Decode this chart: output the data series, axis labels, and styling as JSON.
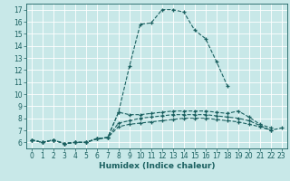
{
  "title": "",
  "xlabel": "Humidex (Indice chaleur)",
  "ylabel": "",
  "bg_color": "#c8e8e8",
  "line_color": "#1a6060",
  "grid_color": "#ffffff",
  "xlim": [
    -0.5,
    23.5
  ],
  "ylim": [
    5.5,
    17.5
  ],
  "xticks": [
    0,
    1,
    2,
    3,
    4,
    5,
    6,
    7,
    8,
    9,
    10,
    11,
    12,
    13,
    14,
    15,
    16,
    17,
    18,
    19,
    20,
    21,
    22,
    23
  ],
  "yticks": [
    6,
    7,
    8,
    9,
    10,
    11,
    12,
    13,
    14,
    15,
    16,
    17
  ],
  "line1_x": [
    0,
    1,
    2,
    3,
    4,
    5,
    6,
    7,
    8,
    9,
    10,
    11,
    12,
    13,
    14,
    15,
    16,
    17,
    18
  ],
  "line1_y": [
    6.2,
    6.0,
    6.2,
    5.9,
    6.0,
    6.0,
    6.3,
    6.4,
    8.5,
    12.3,
    15.8,
    15.9,
    17.0,
    17.0,
    16.8,
    15.3,
    14.6,
    12.7,
    10.7
  ],
  "line2_x": [
    0,
    1,
    2,
    3,
    4,
    5,
    6,
    7,
    8,
    9,
    10,
    11,
    12,
    13,
    14,
    15,
    16,
    17,
    18,
    19,
    20,
    21,
    22
  ],
  "line2_y": [
    6.2,
    6.0,
    6.2,
    5.9,
    6.0,
    6.0,
    6.3,
    6.4,
    8.5,
    8.3,
    8.3,
    8.4,
    8.5,
    8.6,
    8.6,
    8.6,
    8.6,
    8.5,
    8.4,
    8.6,
    8.1,
    7.5,
    7.2
  ],
  "line3_x": [
    0,
    1,
    2,
    3,
    4,
    5,
    6,
    7,
    8,
    9,
    10,
    11,
    12,
    13,
    14,
    15,
    16,
    17,
    18,
    19,
    20,
    21,
    22
  ],
  "line3_y": [
    6.2,
    6.0,
    6.2,
    5.9,
    6.0,
    6.0,
    6.3,
    6.4,
    7.6,
    7.8,
    8.0,
    8.1,
    8.2,
    8.3,
    8.3,
    8.3,
    8.3,
    8.2,
    8.1,
    8.0,
    7.8,
    7.4,
    7.0
  ],
  "line4_x": [
    0,
    1,
    2,
    3,
    4,
    5,
    6,
    7,
    8,
    9,
    10,
    11,
    12,
    13,
    14,
    15,
    16,
    17,
    18,
    19,
    20,
    21,
    22,
    23
  ],
  "line4_y": [
    6.2,
    6.0,
    6.2,
    5.9,
    6.0,
    6.0,
    6.3,
    6.4,
    7.3,
    7.5,
    7.6,
    7.7,
    7.8,
    7.9,
    8.0,
    8.0,
    8.0,
    7.9,
    7.8,
    7.7,
    7.5,
    7.3,
    7.0,
    7.2
  ],
  "tick_fontsize": 5.5,
  "xlabel_fontsize": 6.5
}
